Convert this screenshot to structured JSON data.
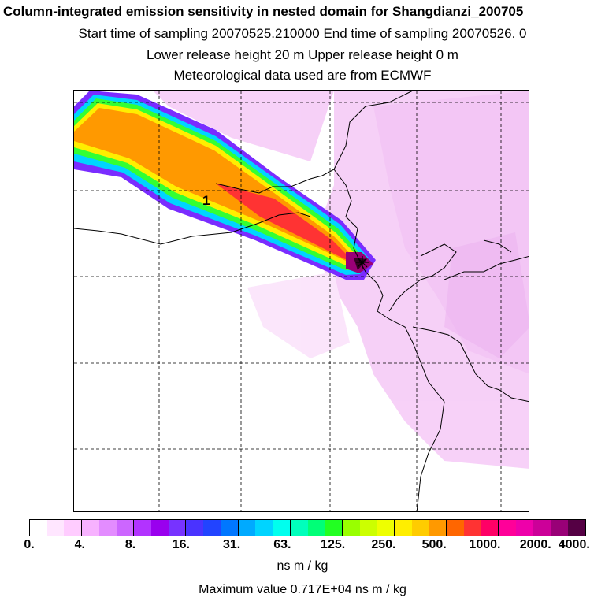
{
  "title": {
    "line1": "Column-integrated emission sensitivity in nested domain for Shangdianzi_200705",
    "line2": "Start time of sampling 20070525.210000     End time of sampling 20070526.     0",
    "line3": "Lower release height   20 m          Upper release height    0 m",
    "line4": "Meteorological data used are from ECMWF"
  },
  "map": {
    "release_label": "1"
  },
  "colorbar": {
    "colors": [
      "#ffffff",
      "#ffe6ff",
      "#ffccff",
      "#f7b2ff",
      "#e38cff",
      "#cc66ff",
      "#b233ff",
      "#9900ee",
      "#7733ff",
      "#4a33ff",
      "#2244ff",
      "#0077ff",
      "#00aaff",
      "#00d4ff",
      "#00ffee",
      "#00ffbb",
      "#00ff77",
      "#22ff22",
      "#99ff00",
      "#ccff00",
      "#eeff00",
      "#ffee00",
      "#ffcc00",
      "#ff9900",
      "#ff6600",
      "#ff3333",
      "#ff0066",
      "#ff0099",
      "#ee00aa",
      "#cc0099",
      "#990077",
      "#550044"
    ],
    "tick_labels": [
      "0.",
      "4.",
      "8.",
      "16.",
      "31.",
      "63.",
      "125.",
      "250.",
      "500.",
      "1000.",
      "2000.",
      "4000."
    ],
    "units": "ns m / kg"
  },
  "footer": {
    "max_value": "Maximum value  0.717E+04 ns m / kg"
  }
}
